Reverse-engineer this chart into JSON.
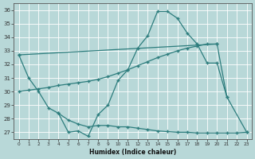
{
  "bg_color": "#b8d8d8",
  "line_color": "#2d7d7d",
  "xlabel": "Humidex (Indice chaleur)",
  "ylim": [
    26.5,
    36.5
  ],
  "yticks": [
    27,
    28,
    29,
    30,
    31,
    32,
    33,
    34,
    35,
    36
  ],
  "xticks": [
    0,
    1,
    2,
    3,
    4,
    5,
    6,
    7,
    8,
    9,
    10,
    11,
    12,
    13,
    14,
    15,
    16,
    17,
    18,
    19,
    20,
    21,
    22,
    23
  ],
  "lines": [
    {
      "x": [
        0,
        1,
        2,
        3,
        4,
        5,
        6,
        7,
        8,
        9,
        10,
        11,
        12,
        13,
        14,
        15,
        16,
        17,
        18,
        19,
        20,
        21
      ],
      "y": [
        32.7,
        31.0,
        30.0,
        28.8,
        28.4,
        27.0,
        27.1,
        26.7,
        28.3,
        29.0,
        30.8,
        31.6,
        33.2,
        34.1,
        35.9,
        35.9,
        35.4,
        34.3,
        33.5,
        32.1,
        32.1,
        29.6
      ]
    },
    {
      "x": [
        0,
        1,
        2,
        3,
        4,
        5,
        6,
        7,
        8,
        9,
        10,
        11,
        12,
        13,
        14,
        15,
        16,
        17,
        18,
        19,
        20
      ],
      "y": [
        30.0,
        30.1,
        30.2,
        30.3,
        30.45,
        30.55,
        30.65,
        30.75,
        30.9,
        31.1,
        31.35,
        31.6,
        31.9,
        32.2,
        32.5,
        32.75,
        33.0,
        33.2,
        33.35,
        33.5,
        33.5
      ]
    },
    {
      "x": [
        0,
        20,
        21,
        23
      ],
      "y": [
        32.7,
        33.5,
        29.6,
        27.0
      ]
    },
    {
      "x": [
        4,
        5,
        6,
        7,
        8,
        9,
        10,
        11,
        12,
        13,
        14,
        15,
        16,
        17,
        18,
        19,
        20,
        21,
        22,
        23
      ],
      "y": [
        28.4,
        27.9,
        27.6,
        27.4,
        27.5,
        27.5,
        27.4,
        27.4,
        27.3,
        27.2,
        27.1,
        27.05,
        27.0,
        27.0,
        26.95,
        26.95,
        26.95,
        26.95,
        26.95,
        27.0
      ]
    }
  ]
}
